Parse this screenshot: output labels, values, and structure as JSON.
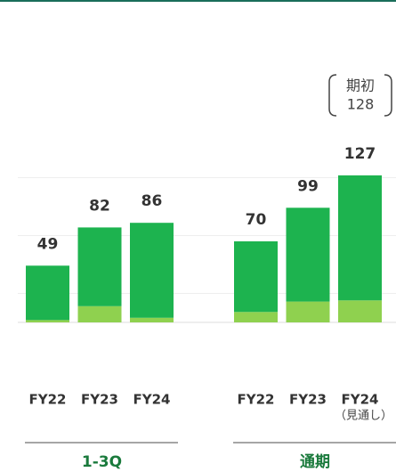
{
  "chart_data": {
    "type": "stacked-bar",
    "groups": [
      {
        "label": "1-3Q",
        "categories": [
          "FY22",
          "FY23",
          "FY24"
        ]
      },
      {
        "label": "通期",
        "categories": [
          "FY22",
          "FY23",
          "FY24"
        ],
        "note": "（見通し）"
      }
    ],
    "series": [
      {
        "color": "#8fd14f",
        "values": [
          2,
          14,
          4,
          9,
          18,
          19
        ]
      },
      {
        "color": "#1db34f",
        "values": [
          47,
          68,
          82,
          61,
          81,
          108
        ]
      }
    ],
    "totals": [
      49,
      82,
      86,
      70,
      99,
      127
    ],
    "annotation": [
      "期初",
      "128"
    ],
    "ylim": [
      0,
      140
    ],
    "yticks": [
      25,
      75,
      125
    ],
    "grid": true
  }
}
